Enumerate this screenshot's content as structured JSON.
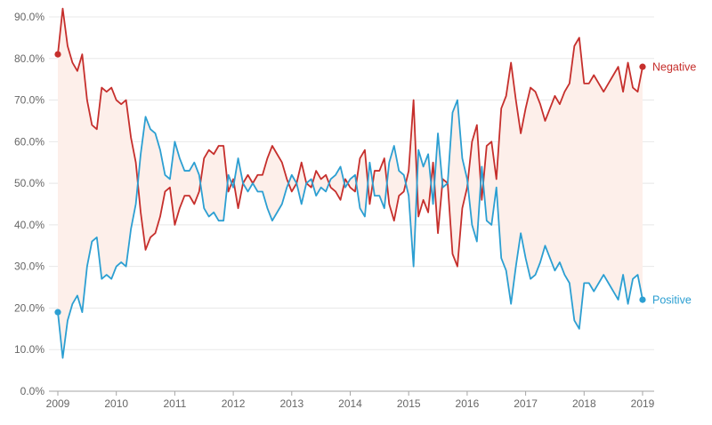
{
  "chart_data": {
    "type": "line",
    "x": [
      "2009-01",
      "2009-02",
      "2009-03",
      "2009-04",
      "2009-05",
      "2009-06",
      "2009-07",
      "2009-08",
      "2009-09",
      "2009-10",
      "2009-11",
      "2009-12",
      "2010-01",
      "2010-02",
      "2010-03",
      "2010-04",
      "2010-05",
      "2010-06",
      "2010-07",
      "2010-08",
      "2010-09",
      "2010-10",
      "2010-11",
      "2010-12",
      "2011-01",
      "2011-02",
      "2011-03",
      "2011-04",
      "2011-05",
      "2011-06",
      "2011-07",
      "2011-08",
      "2011-09",
      "2011-10",
      "2011-11",
      "2011-12",
      "2012-01",
      "2012-02",
      "2012-03",
      "2012-04",
      "2012-05",
      "2012-06",
      "2012-07",
      "2012-08",
      "2012-09",
      "2012-10",
      "2012-11",
      "2012-12",
      "2013-01",
      "2013-02",
      "2013-03",
      "2013-04",
      "2013-05",
      "2013-06",
      "2013-07",
      "2013-08",
      "2013-09",
      "2013-10",
      "2013-11",
      "2013-12",
      "2014-01",
      "2014-02",
      "2014-03",
      "2014-04",
      "2014-05",
      "2014-06",
      "2014-07",
      "2014-08",
      "2014-09",
      "2014-10",
      "2014-11",
      "2014-12",
      "2015-01",
      "2015-02",
      "2015-03",
      "2015-04",
      "2015-05",
      "2015-06",
      "2015-07",
      "2015-08",
      "2015-09",
      "2015-10",
      "2015-11",
      "2015-12",
      "2016-01",
      "2016-02",
      "2016-03",
      "2016-04",
      "2016-05",
      "2016-06",
      "2016-07",
      "2016-08",
      "2016-09",
      "2016-10",
      "2016-11",
      "2016-12",
      "2017-01",
      "2017-02",
      "2017-03",
      "2017-04",
      "2017-05",
      "2017-06",
      "2017-07",
      "2017-08",
      "2017-09",
      "2017-10",
      "2017-11",
      "2017-12",
      "2018-01",
      "2018-02",
      "2018-03",
      "2018-04",
      "2018-05",
      "2018-06",
      "2018-07",
      "2018-08",
      "2018-09",
      "2018-10",
      "2018-11",
      "2018-12",
      "2019-01"
    ],
    "series": [
      {
        "name": "Negative",
        "color": "#c62f2c",
        "values": [
          81,
          92,
          83,
          79,
          77,
          81,
          70,
          64,
          63,
          73,
          72,
          73,
          70,
          69,
          70,
          61,
          55,
          43,
          34,
          37,
          38,
          42,
          48,
          49,
          40,
          44,
          47,
          47,
          45,
          48,
          56,
          58,
          57,
          59,
          59,
          48,
          51,
          44,
          50,
          52,
          50,
          52,
          52,
          56,
          59,
          57,
          55,
          51,
          48,
          50,
          55,
          50,
          49,
          53,
          51,
          52,
          49,
          48,
          46,
          51,
          49,
          48,
          56,
          58,
          45,
          53,
          53,
          56,
          45,
          41,
          47,
          48,
          53,
          70,
          42,
          46,
          43,
          55,
          38,
          51,
          50,
          33,
          30,
          44,
          49,
          60,
          64,
          46,
          59,
          60,
          51,
          68,
          71,
          79,
          70,
          62,
          68,
          73,
          72,
          69,
          65,
          68,
          71,
          69,
          72,
          74,
          83,
          85,
          74,
          74,
          76,
          74,
          72,
          74,
          76,
          78,
          72,
          79,
          73,
          72,
          78
        ]
      },
      {
        "name": "Positive",
        "color": "#2c9fd2",
        "values": [
          19,
          8,
          17,
          21,
          23,
          19,
          30,
          36,
          37,
          27,
          28,
          27,
          30,
          31,
          30,
          39,
          45,
          57,
          66,
          63,
          62,
          58,
          52,
          51,
          60,
          56,
          53,
          53,
          55,
          52,
          44,
          42,
          43,
          41,
          41,
          52,
          49,
          56,
          50,
          48,
          50,
          48,
          48,
          44,
          41,
          43,
          45,
          49,
          52,
          50,
          45,
          50,
          51,
          47,
          49,
          48,
          51,
          52,
          54,
          49,
          51,
          52,
          44,
          42,
          55,
          47,
          47,
          44,
          55,
          59,
          53,
          52,
          47,
          30,
          58,
          54,
          57,
          45,
          62,
          49,
          50,
          67,
          70,
          56,
          51,
          40,
          36,
          54,
          41,
          40,
          49,
          32,
          29,
          21,
          30,
          38,
          32,
          27,
          28,
          31,
          35,
          32,
          29,
          31,
          28,
          26,
          17,
          15,
          26,
          26,
          24,
          26,
          28,
          26,
          24,
          22,
          28,
          21,
          27,
          28,
          22
        ]
      }
    ],
    "xlim": [
      "2009-01",
      "2019-01"
    ],
    "ylim": [
      0,
      90
    ],
    "x_ticks": [
      "2009",
      "2010",
      "2011",
      "2012",
      "2013",
      "2014",
      "2015",
      "2016",
      "2017",
      "2018",
      "2019"
    ],
    "y_tick_values": [
      0,
      10,
      20,
      30,
      40,
      50,
      60,
      70,
      80,
      90
    ],
    "y_ticks": [
      "0.0%",
      "10.0%",
      "20.0%",
      "30.0%",
      "40.0%",
      "50.0%",
      "60.0%",
      "70.0%",
      "80.0%",
      "90.0%"
    ],
    "grid": true,
    "legend": "inline labels at right end of each line",
    "fill_between_color": "#fdefea",
    "gridline_color": "#e8e8e8",
    "baseline_color": "#a6a6a6"
  }
}
